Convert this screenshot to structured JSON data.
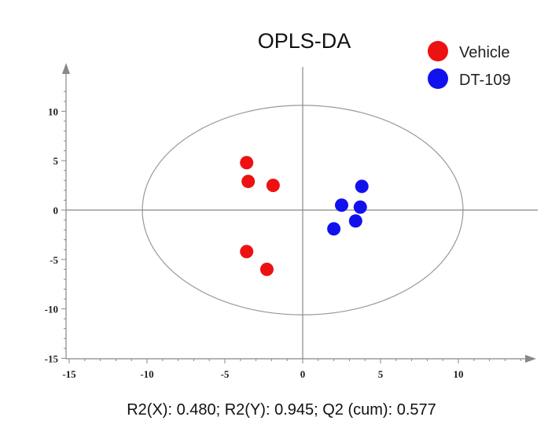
{
  "chart_data": {
    "type": "scatter",
    "title": "OPLS-DA",
    "xlim": [
      -15,
      15
    ],
    "ylim": [
      -15,
      15
    ],
    "xticks": [
      "-15",
      "-10",
      "-5",
      "0",
      "5",
      "10"
    ],
    "yticks": [
      "10",
      "5",
      "0",
      "-5",
      "-10",
      "-15"
    ],
    "grid": false,
    "legend_position": "top-right",
    "series": [
      {
        "name": "Vehicle",
        "color": "#ee1111",
        "points": [
          [
            -3.6,
            4.8
          ],
          [
            -3.5,
            2.9
          ],
          [
            -1.9,
            2.5
          ],
          [
            -3.6,
            -4.2
          ],
          [
            -2.3,
            -6.0
          ]
        ]
      },
      {
        "name": "DT-109",
        "color": "#1111ee",
        "points": [
          [
            3.8,
            2.4
          ],
          [
            2.5,
            0.5
          ],
          [
            3.7,
            0.3
          ],
          [
            3.4,
            -1.1
          ],
          [
            2.0,
            -1.9
          ]
        ]
      }
    ],
    "ellipse": {
      "cx": 0,
      "cy": 0,
      "rx": 10.3,
      "ry": 10.6
    },
    "footer": "R2(X): 0.480; R2(Y): 0.945; Q2 (cum): 0.577"
  }
}
